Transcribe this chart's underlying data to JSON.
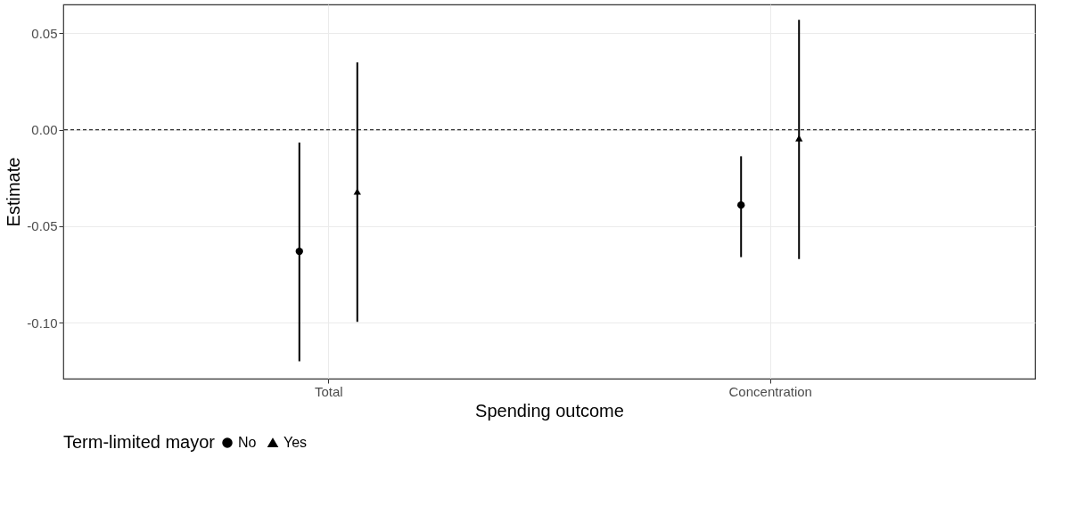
{
  "chart_data": {
    "type": "scatter",
    "xlabel": "Spending outcome",
    "ylabel": "Estimate",
    "legend_title": "Term-limited mayor",
    "categories": [
      "Total",
      "Concentration"
    ],
    "series": [
      {
        "name": "No",
        "color": "#000000",
        "marker": "circle",
        "values": [
          -0.063,
          -0.039
        ],
        "errors": [
          [
            -0.12,
            -0.0066
          ],
          [
            -0.066,
            -0.0137
          ]
        ]
      },
      {
        "name": "Yes",
        "color": "#000000",
        "marker": "triangle",
        "values": [
          -0.032,
          -0.0044
        ],
        "errors": [
          [
            -0.0996,
            0.035
          ],
          [
            -0.067,
            0.057
          ]
        ]
      }
    ],
    "ylim": [
      -0.129,
      0.065
    ],
    "yticks": [
      {
        "value": 0.05,
        "label": "0.05"
      },
      {
        "value": 0,
        "label": "0.00"
      },
      {
        "value": -0.05,
        "label": "-0.05"
      },
      {
        "value": -0.1,
        "label": "-0.10"
      }
    ],
    "ref_lines": [
      {
        "axis": "y",
        "value": 0,
        "line_style": "dashed"
      }
    ],
    "grid": true,
    "legend": "bottom"
  }
}
